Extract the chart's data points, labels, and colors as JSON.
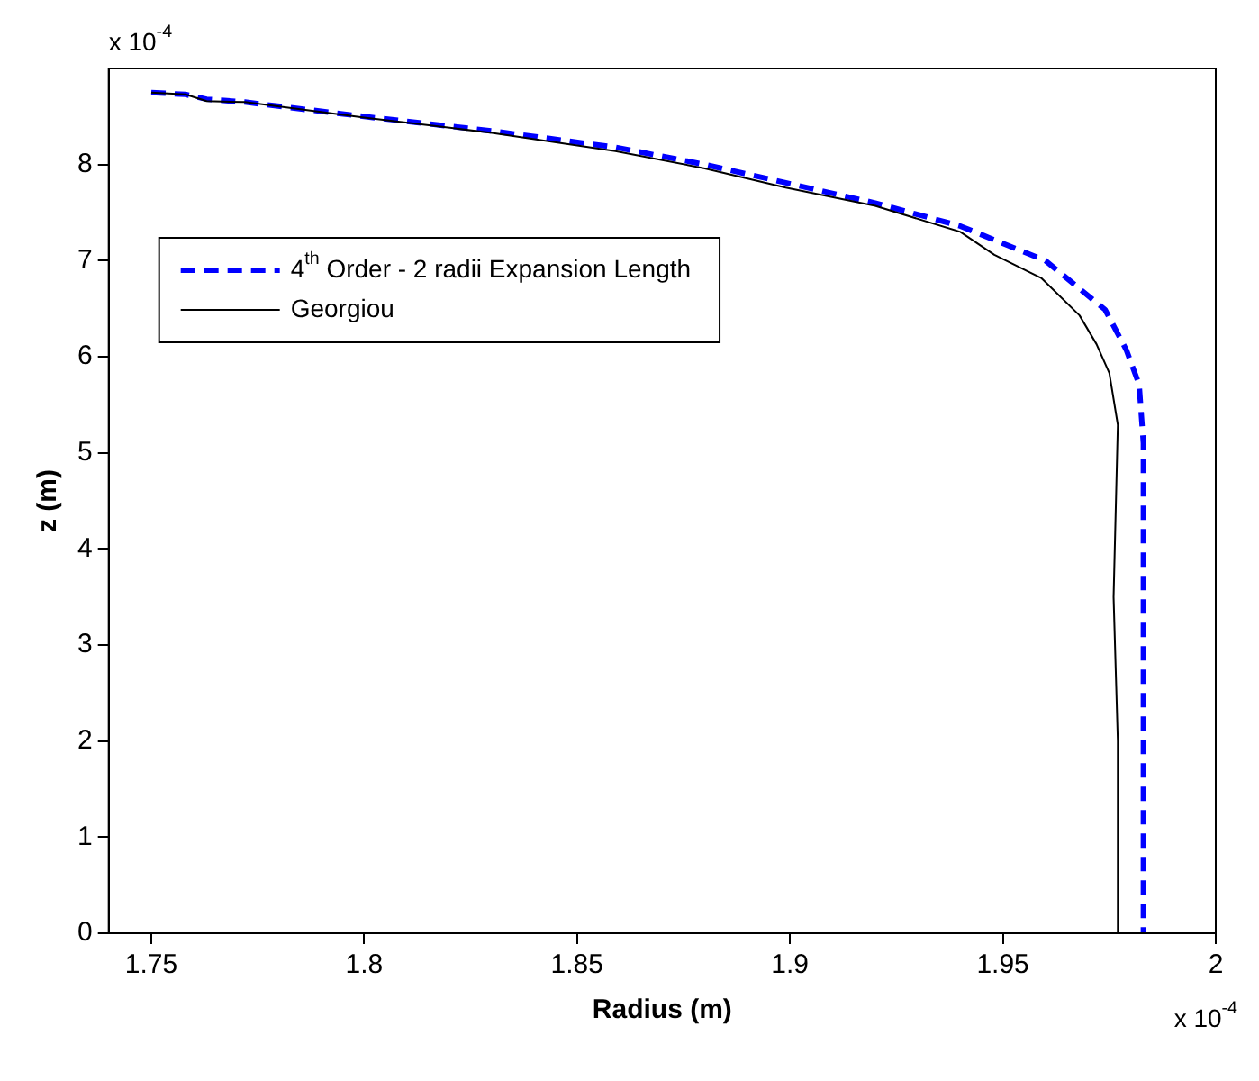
{
  "chart_data": {
    "type": "line",
    "xlabel": "Radius (m)",
    "ylabel": "z (m)",
    "annotations": [
      "x 10$^{-4}$",
      "x 10$^{-4}$"
    ],
    "xlim": [
      1.74,
      2
    ],
    "xticks": [
      1.75,
      1.8,
      1.85,
      1.9,
      1.95,
      2
    ],
    "ylim": [
      0,
      9
    ],
    "yticks": [
      0,
      1,
      2,
      3,
      4,
      5,
      6,
      7,
      8
    ],
    "grid": false,
    "legend": "left",
    "marker": "none",
    "series": [
      {
        "name": "4$^{th}$ Order - 2 radii Expansion Length",
        "color": "#0000ff",
        "line_style": "dashed",
        "x": [
          1.75,
          1.758,
          1.763,
          1.772,
          1.8,
          1.83,
          1.859,
          1.88,
          1.899,
          1.92,
          1.94,
          1.96,
          1.974,
          1.979,
          1.982,
          1.983,
          1.983
        ],
        "values": [
          8.75,
          8.73,
          8.68,
          8.65,
          8.5,
          8.35,
          8.18,
          8.0,
          7.81,
          7.6,
          7.36,
          7.0,
          6.49,
          6.07,
          5.71,
          5.1,
          0
        ]
      },
      {
        "name": "Georgiou",
        "color": "#000000",
        "line_style": "solid",
        "x": [
          1.75,
          1.758,
          1.763,
          1.772,
          1.8,
          1.83,
          1.859,
          1.88,
          1.899,
          1.92,
          1.94,
          1.948,
          1.959,
          1.968,
          1.972,
          1.975,
          1.977,
          1.976,
          1.977,
          1.977
        ],
        "values": [
          8.75,
          8.73,
          8.66,
          8.65,
          8.49,
          8.33,
          8.14,
          7.96,
          7.76,
          7.57,
          7.3,
          7.06,
          6.82,
          6.43,
          6.13,
          5.83,
          5.29,
          3.5,
          2.0,
          0
        ]
      }
    ]
  }
}
